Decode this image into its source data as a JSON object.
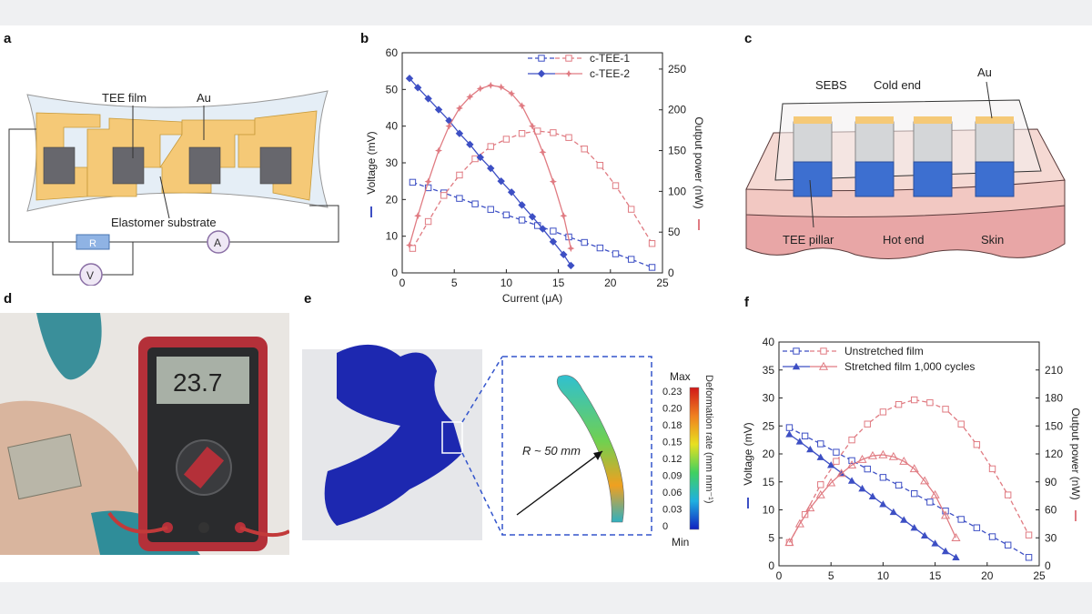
{
  "panels": {
    "a": {
      "label": "a",
      "text_tee_film": "TEE film",
      "text_au": "Au",
      "text_substrate": "Elastomer substrate",
      "text_r": "R",
      "text_a": "A",
      "text_v": "V"
    },
    "b": {
      "label": "b"
    },
    "c": {
      "label": "c",
      "text_sebs": "SEBS",
      "text_cold_end": "Cold end",
      "text_au": "Au",
      "text_tee_pillar": "TEE pillar",
      "text_hot_end": "Hot end",
      "text_skin": "Skin"
    },
    "d": {
      "label": "d",
      "display_reading": "23.7"
    },
    "e": {
      "label": "e",
      "radius_text": "R ~ 50 mm",
      "colorbar_max": "Max",
      "colorbar_min": "Min",
      "colorbar_title": "Deformation rate (mm mm⁻¹)",
      "colorbar_ticks": [
        "0.23",
        "0.20",
        "0.18",
        "0.15",
        "0.12",
        "0.09",
        "0.06",
        "0.03",
        "0"
      ]
    },
    "f": {
      "label": "f"
    }
  },
  "colors": {
    "voltage": "#3d4fc4",
    "power": "#e07b82",
    "gold": "#f5c977",
    "pillar_blue": "#3d6fd0"
  },
  "chart_data": [
    {
      "id": "b",
      "type": "line",
      "xlabel": "Current (μA)",
      "ylabel_left": "Voltage (mV)",
      "ylabel_right": "Output power (nW)",
      "xlim": [
        0,
        25
      ],
      "xticks": [
        0,
        5,
        10,
        15,
        20,
        25
      ],
      "ylim_left": [
        0,
        60
      ],
      "yticks_left": [
        0,
        10,
        20,
        30,
        40,
        50,
        60
      ],
      "ylim_right": [
        0,
        270
      ],
      "yticks_right": [
        0,
        50,
        100,
        150,
        200,
        250
      ],
      "legend": [
        "c-TEE-1",
        "c-TEE-2"
      ],
      "series": [
        {
          "name": "c-TEE-1",
          "axis": "left",
          "style": "dashed",
          "marker": "open-square",
          "x": [
            1.0,
            2.5,
            4,
            5.5,
            7,
            8.5,
            10,
            11.5,
            13,
            14.5,
            16,
            17.5,
            19,
            20.5,
            22,
            24
          ],
          "y": [
            24.7,
            23.2,
            21.8,
            20.3,
            18.8,
            17.3,
            15.8,
            14.4,
            12.9,
            11.4,
            9.8,
            8.3,
            6.8,
            5.2,
            3.7,
            1.5
          ]
        },
        {
          "name": "c-TEE-1",
          "axis": "right",
          "style": "dashed",
          "marker": "open-square",
          "x": [
            1.0,
            2.5,
            4,
            5.5,
            7,
            8.5,
            10,
            11.5,
            13,
            14.5,
            16,
            17.5,
            19,
            20.5,
            22,
            24
          ],
          "y": [
            30,
            63,
            95,
            120,
            140,
            155,
            164,
            171,
            174,
            172,
            166,
            152,
            132,
            107,
            78,
            36
          ]
        },
        {
          "name": "c-TEE-2",
          "axis": "left",
          "style": "solid",
          "marker": "filled-diamond",
          "x": [
            0.7,
            1.5,
            2.5,
            3.5,
            4.5,
            5.5,
            6.5,
            7.5,
            8.5,
            9.5,
            10.5,
            11.5,
            12.5,
            13.5,
            14.5,
            15.5,
            16.2
          ],
          "y": [
            53,
            50.5,
            47.5,
            44.5,
            41.5,
            38,
            35,
            31.5,
            28.5,
            25,
            22,
            18.5,
            15.3,
            12,
            8.5,
            5,
            2
          ]
        },
        {
          "name": "c-TEE-2",
          "axis": "right",
          "style": "solid",
          "marker": "star",
          "x": [
            0.7,
            1.5,
            2.5,
            3.5,
            4.5,
            5.5,
            6.5,
            7.5,
            8.5,
            9.5,
            10.5,
            11.5,
            12.5,
            13.5,
            14.5,
            15.5,
            16.2
          ],
          "y": [
            34,
            70,
            112,
            150,
            180,
            202,
            216,
            226,
            230,
            228,
            220,
            205,
            180,
            148,
            112,
            70,
            30
          ]
        }
      ]
    },
    {
      "id": "f",
      "type": "line",
      "xlabel": "Current (μA)",
      "ylabel_left": "Voltage (mV)",
      "ylabel_right": "Output power (nW)",
      "xlim": [
        0,
        25
      ],
      "xticks": [
        0,
        5,
        10,
        15,
        20,
        25
      ],
      "ylim_left": [
        0,
        40
      ],
      "yticks_left": [
        0,
        5,
        10,
        15,
        20,
        25,
        30,
        35,
        40
      ],
      "ylim_right": [
        0,
        240
      ],
      "yticks_right": [
        0,
        30,
        60,
        90,
        120,
        150,
        180,
        210
      ],
      "legend": [
        "Unstretched film",
        "Stretched film 1,000 cycles"
      ],
      "series": [
        {
          "name": "Unstretched film",
          "axis": "left",
          "style": "dashed",
          "marker": "open-square",
          "x": [
            1.0,
            2.5,
            4,
            5.5,
            7,
            8.5,
            10,
            11.5,
            13,
            14.5,
            16,
            17.5,
            19,
            20.5,
            22,
            24
          ],
          "y": [
            24.7,
            23.2,
            21.8,
            20.3,
            18.8,
            17.3,
            15.8,
            14.4,
            12.9,
            11.4,
            9.8,
            8.3,
            6.8,
            5.2,
            3.7,
            1.5
          ]
        },
        {
          "name": "Unstretched film",
          "axis": "right",
          "style": "dashed",
          "marker": "open-square",
          "x": [
            1.0,
            2.5,
            4,
            5.5,
            7,
            8.5,
            10,
            11.5,
            13,
            14.5,
            16,
            17.5,
            19,
            20.5,
            22,
            24
          ],
          "y": [
            25,
            55,
            87,
            112,
            135,
            152,
            165,
            173,
            178,
            175,
            168,
            152,
            130,
            104,
            76,
            33
          ]
        },
        {
          "name": "Stretched film 1,000 cycles",
          "axis": "left",
          "style": "solid",
          "marker": "filled-triangle",
          "x": [
            1.0,
            2,
            3,
            4,
            5,
            6,
            7,
            8,
            9,
            10,
            11,
            12,
            13,
            14,
            15,
            16,
            17
          ],
          "y": [
            23.5,
            22.2,
            20.8,
            19.4,
            18,
            16.6,
            15.2,
            13.8,
            12.4,
            11,
            9.6,
            8.2,
            6.8,
            5.4,
            4.0,
            2.6,
            1.5
          ]
        },
        {
          "name": "Stretched film 1,000 cycles",
          "axis": "right",
          "style": "solid",
          "marker": "open-triangle",
          "x": [
            1.0,
            2,
            3,
            4,
            5,
            6,
            7,
            8,
            9,
            10,
            11,
            12,
            13,
            14,
            15,
            16,
            17
          ],
          "y": [
            25,
            45,
            62,
            76,
            89,
            99,
            108,
            114,
            118,
            119,
            117,
            112,
            104,
            91,
            76,
            54,
            30
          ]
        }
      ]
    }
  ]
}
